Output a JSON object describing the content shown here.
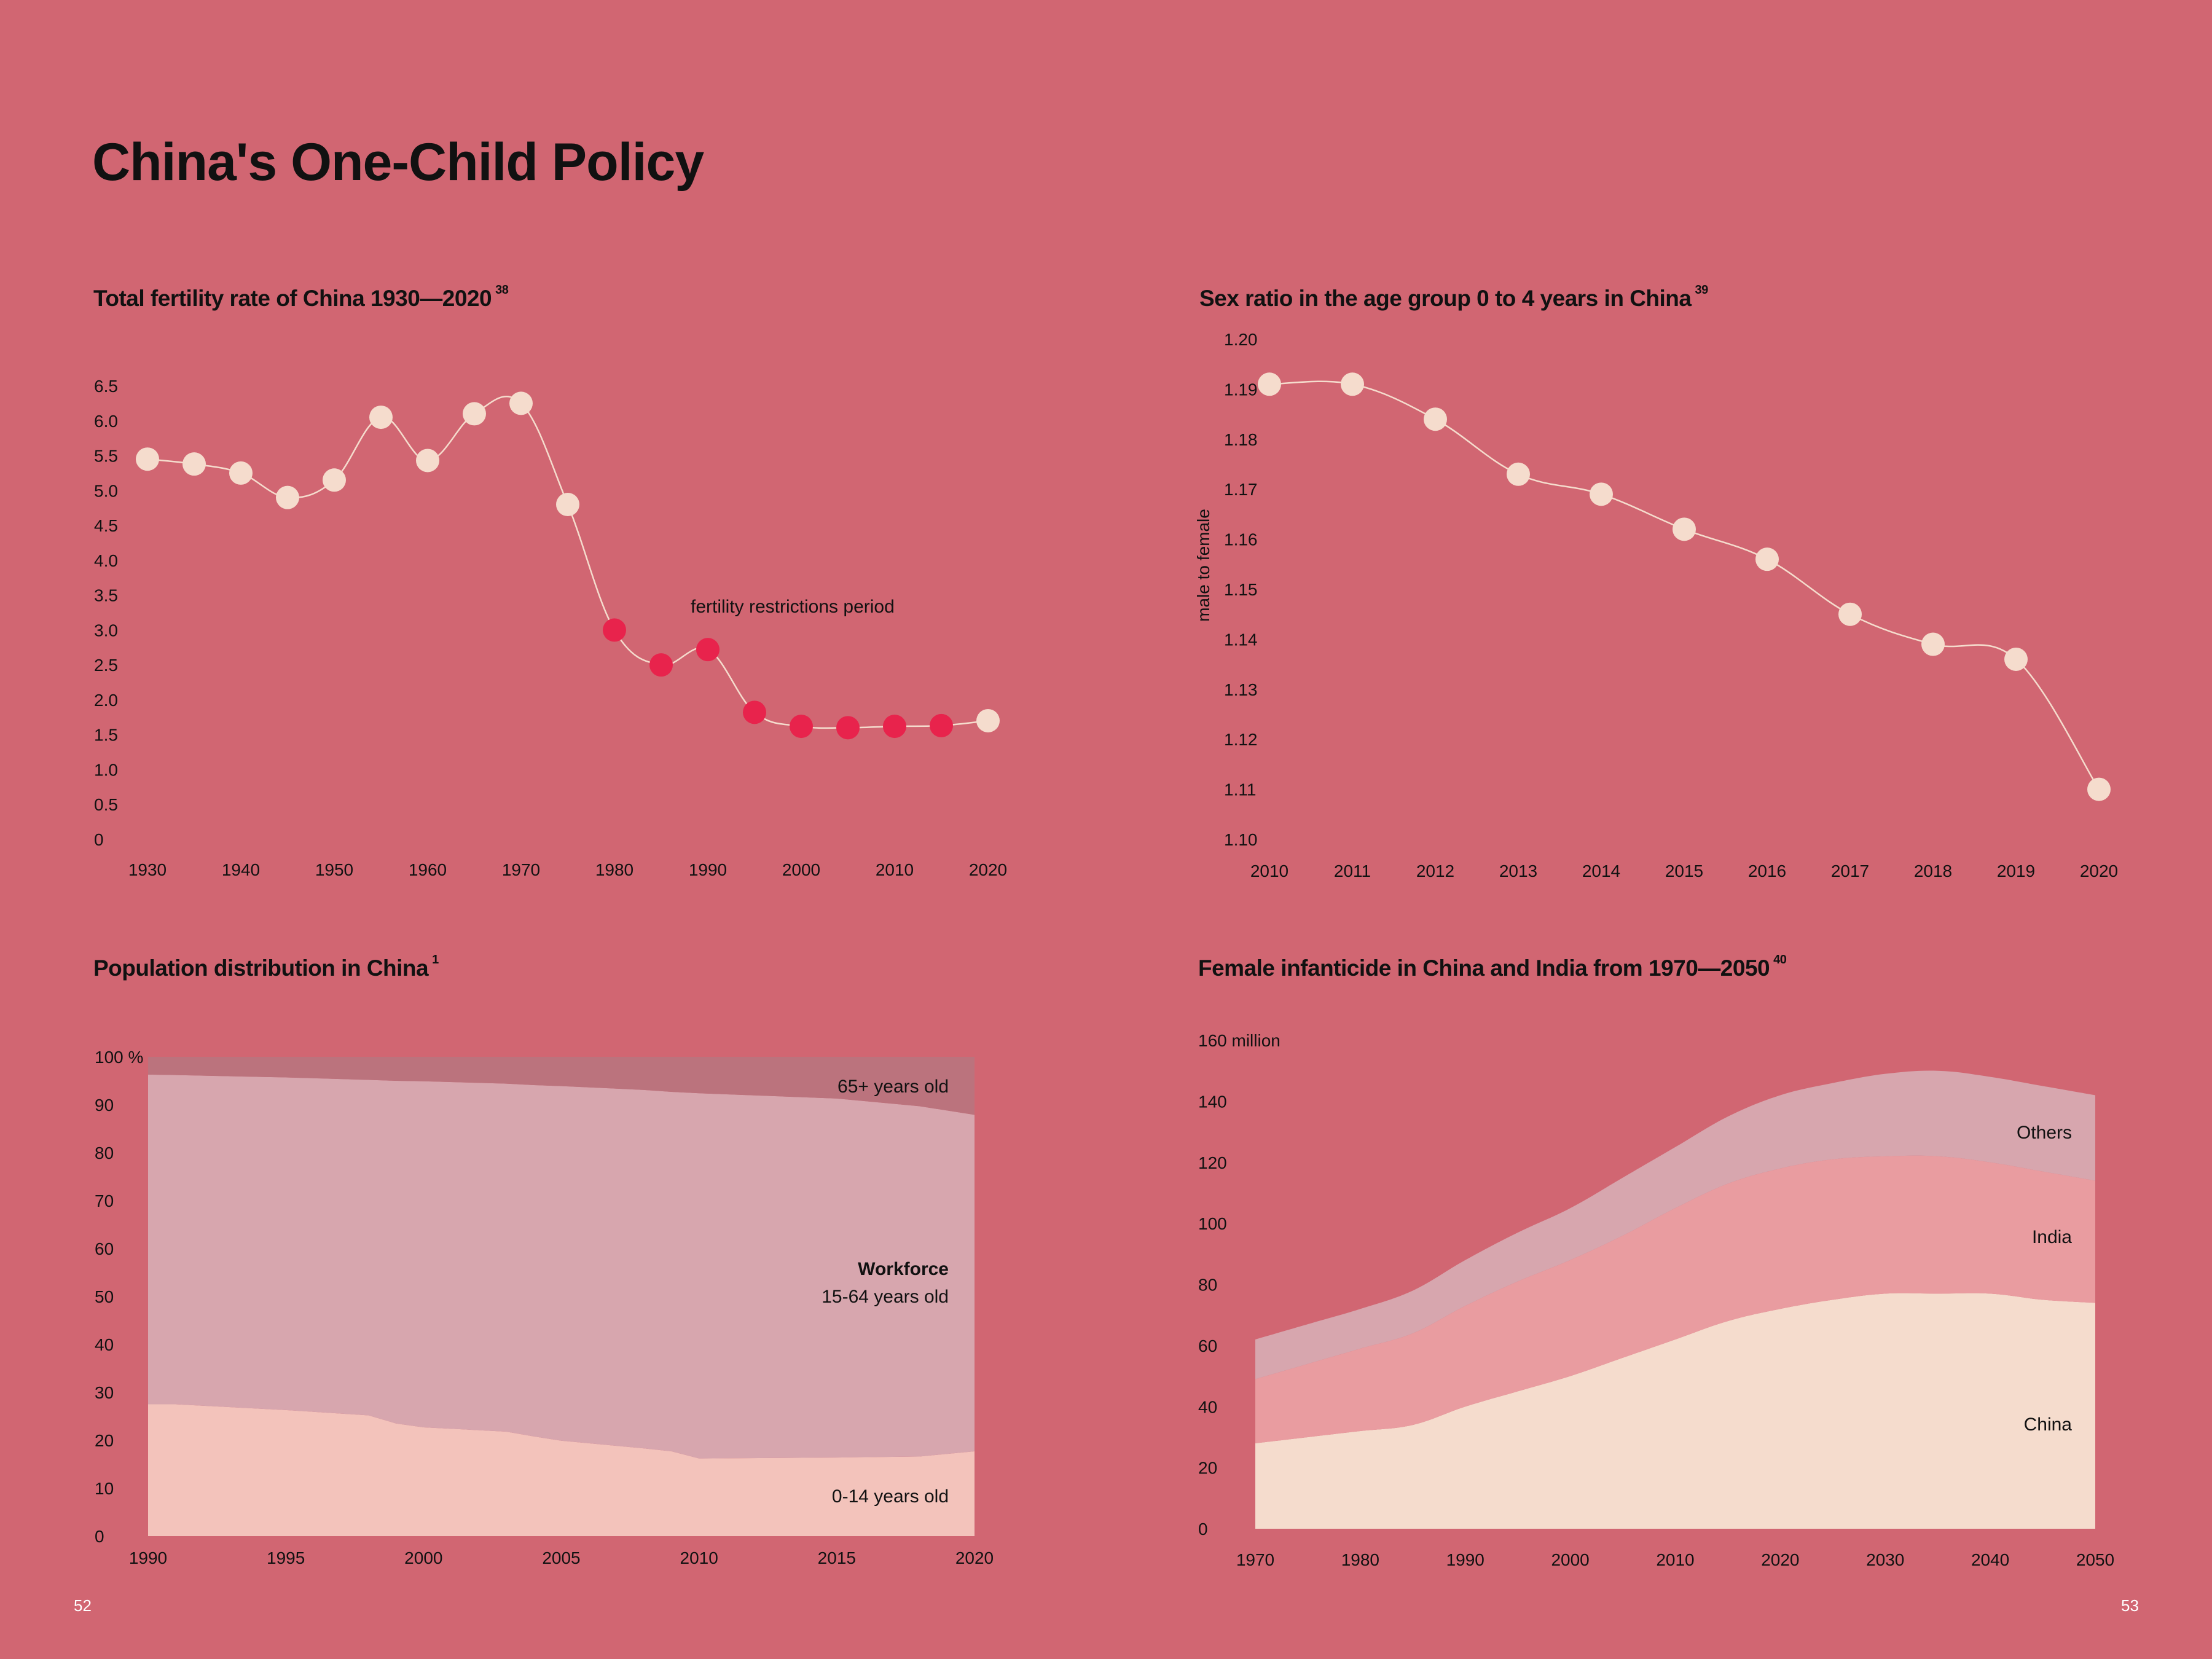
{
  "page": {
    "title": "China's One-Child Policy",
    "page_left": "52",
    "page_right": "53"
  },
  "colors": {
    "background": "#d16672",
    "dot_normal": "#f5dccd",
    "dot_restricted": "#e8234c",
    "line": "#f5dccd",
    "pop_0_14": "#f3c3bb",
    "pop_15_64": "#d7a6ae",
    "pop_65": "#bb737d",
    "inf_china": "#f5dccd",
    "inf_india": "#e99ca0",
    "inf_others": "#d7a6ae"
  },
  "chart_data": [
    {
      "id": "fertility",
      "type": "line",
      "title": "Total fertility rate of China 1930—2020",
      "footnote": "38",
      "xlabel": "",
      "ylabel": "",
      "x": [
        1930,
        1935,
        1940,
        1945,
        1950,
        1955,
        1960,
        1965,
        1970,
        1975,
        1980,
        1985,
        1990,
        1995,
        2000,
        2005,
        2010,
        2015,
        2020
      ],
      "values": [
        5.45,
        5.38,
        5.25,
        4.9,
        5.15,
        6.05,
        5.43,
        6.1,
        6.25,
        4.8,
        3.0,
        2.5,
        2.72,
        1.82,
        1.62,
        1.6,
        1.62,
        1.63,
        1.7
      ],
      "restricted": [
        false,
        false,
        false,
        false,
        false,
        false,
        false,
        false,
        false,
        false,
        true,
        true,
        true,
        true,
        true,
        true,
        true,
        true,
        false
      ],
      "xticks": [
        "1930",
        "1940",
        "1950",
        "1960",
        "1970",
        "1980",
        "1990",
        "2000",
        "2010",
        "2020"
      ],
      "yticks": [
        "0",
        "0.5",
        "1.0",
        "1.5",
        "2.0",
        "2.5",
        "3.0",
        "3.5",
        "4.0",
        "4.5",
        "5.0",
        "5.5",
        "6.0",
        "6.5"
      ],
      "xlim": [
        1930,
        2020
      ],
      "ylim": [
        0,
        6.5
      ],
      "annotation": "fertility restrictions period",
      "grid": false
    },
    {
      "id": "sexratio",
      "type": "line",
      "title": "Sex ratio in the age group 0 to 4 years in China",
      "footnote": "39",
      "xlabel": "",
      "ylabel": "male to female",
      "x": [
        2010,
        2011,
        2012,
        2013,
        2014,
        2015,
        2016,
        2017,
        2018,
        2019,
        2020
      ],
      "values": [
        1.191,
        1.191,
        1.184,
        1.173,
        1.169,
        1.162,
        1.156,
        1.145,
        1.139,
        1.136,
        1.11
      ],
      "xticks": [
        "2010",
        "2011",
        "2012",
        "2013",
        "2014",
        "2015",
        "2016",
        "2017",
        "2018",
        "2019",
        "2020"
      ],
      "yticks": [
        "1.10",
        "1.11",
        "1.12",
        "1.13",
        "1.14",
        "1.15",
        "1.16",
        "1.17",
        "1.18",
        "1.19",
        "1.20"
      ],
      "xlim": [
        2010,
        2020
      ],
      "ylim": [
        1.1,
        1.2
      ],
      "grid": false
    },
    {
      "id": "population",
      "type": "area",
      "stacked": true,
      "title": "Population distribution in China",
      "footnote": "1",
      "x": [
        1990,
        1991,
        1995,
        1998,
        1999,
        2000,
        2003,
        2004,
        2005,
        2008,
        2009,
        2010,
        2015,
        2018,
        2020
      ],
      "series": [
        {
          "name": "0-14 years old",
          "values": [
            27.5,
            27.5,
            26.3,
            25.2,
            23.5,
            22.7,
            21.8,
            20.8,
            19.9,
            18.3,
            17.7,
            16.2,
            16.4,
            16.6,
            17.7
          ]
        },
        {
          "name": "Workforce 15-64 years old",
          "values": [
            68.8,
            68.7,
            69.4,
            70.0,
            71.5,
            72.2,
            72.6,
            73.3,
            74.0,
            74.8,
            75.0,
            76.2,
            74.9,
            73.1,
            70.2
          ]
        },
        {
          "name": "65+ years old",
          "values": [
            3.7,
            3.8,
            4.3,
            4.8,
            5.0,
            5.1,
            5.6,
            5.9,
            6.1,
            6.9,
            7.3,
            7.6,
            8.7,
            10.3,
            12.1
          ]
        }
      ],
      "labels": {
        "top": "65+ years old",
        "mid_bold": "Workforce",
        "mid": "15-64 years old",
        "bottom": "0-14 years old"
      },
      "xticks": [
        "1990",
        "1995",
        "2000",
        "2005",
        "2010",
        "2015",
        "2020"
      ],
      "yticks": [
        "0",
        "10",
        "20",
        "30",
        "40",
        "50",
        "60",
        "70",
        "80",
        "90",
        "100 %"
      ],
      "xlim": [
        1990,
        2020
      ],
      "ylim": [
        0,
        100
      ],
      "grid": false
    },
    {
      "id": "infanticide",
      "type": "area",
      "stacked": true,
      "title": "Female infanticide in China and India from 1970—2050",
      "footnote": "40",
      "x": [
        1970,
        1975,
        1980,
        1985,
        1990,
        1995,
        2000,
        2005,
        2010,
        2015,
        2020,
        2025,
        2030,
        2035,
        2040,
        2045,
        2050
      ],
      "series": [
        {
          "name": "China",
          "values": [
            28,
            30,
            32,
            34,
            40,
            45,
            50,
            56,
            62,
            68,
            72,
            75,
            77,
            77,
            77,
            75,
            74
          ]
        },
        {
          "name": "India",
          "values": [
            21,
            24,
            27,
            30,
            33,
            36,
            38,
            40,
            43,
            45,
            46,
            46,
            45,
            45,
            43,
            42,
            40
          ]
        },
        {
          "name": "Others",
          "values": [
            13,
            13,
            13,
            14,
            15,
            16,
            17,
            19,
            20,
            22,
            24,
            25,
            27,
            28,
            28,
            28,
            28
          ]
        }
      ],
      "labels": {
        "others": "Others",
        "india": "India",
        "china": "China"
      },
      "xticks": [
        "1970",
        "1980",
        "1990",
        "2000",
        "2010",
        "2020",
        "2030",
        "2040",
        "2050"
      ],
      "yticks": [
        "0",
        "20",
        "40",
        "60",
        "80",
        "100",
        "120",
        "140",
        "160 million"
      ],
      "xlim": [
        1970,
        2050
      ],
      "ylim": [
        0,
        160
      ],
      "grid": false
    }
  ]
}
